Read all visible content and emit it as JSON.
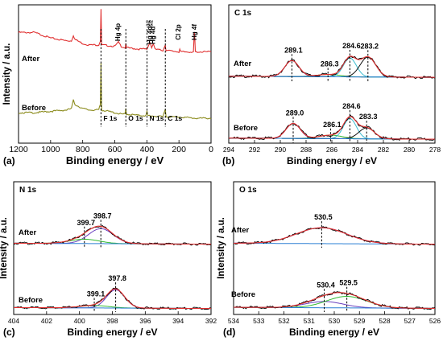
{
  "chart_data": [
    {
      "panel_id": "a",
      "panel_label": "(a)",
      "type": "line",
      "xlabel": "Binding energy / eV",
      "ylabel": "Intensity / a.u.",
      "xlim": [
        1200,
        0
      ],
      "xticks": [
        1200,
        1000,
        800,
        600,
        400,
        200,
        0
      ],
      "peak_labels": [
        {
          "text": "Hg 4p",
          "x": 577
        },
        {
          "text": "Hg 4d",
          "sup": "3/2",
          "x": 380
        },
        {
          "text": "Hg 4d",
          "sup": "5/2",
          "x": 360
        },
        {
          "text": "Cl 2p",
          "x": 200
        },
        {
          "text": "Hg 4f",
          "x": 101
        }
      ],
      "marker_labels": [
        {
          "text": "F 1s",
          "x": 686
        },
        {
          "text": "O 1s",
          "x": 531
        },
        {
          "text": "N 1s",
          "x": 399
        },
        {
          "text": "C 1s",
          "x": 285
        }
      ],
      "series": [
        {
          "name": "After",
          "color": "#e03030",
          "points": [
            [
              1200,
              0.8
            ],
            [
              1100,
              0.8
            ],
            [
              1000,
              0.76
            ],
            [
              900,
              0.74
            ],
            [
              870,
              0.74
            ],
            [
              858,
              0.78
            ],
            [
              848,
              0.75
            ],
            [
              800,
              0.72
            ],
            [
              760,
              0.71
            ],
            [
              700,
              0.71
            ],
            [
              690,
              0.74
            ],
            [
              686,
              0.97
            ],
            [
              682,
              0.71
            ],
            [
              600,
              0.7
            ],
            [
              577,
              0.73
            ],
            [
              560,
              0.7
            ],
            [
              535,
              0.69
            ],
            [
              531,
              0.72
            ],
            [
              527,
              0.69
            ],
            [
              450,
              0.68
            ],
            [
              400,
              0.68
            ],
            [
              380,
              0.73
            ],
            [
              370,
              0.69
            ],
            [
              360,
              0.72
            ],
            [
              350,
              0.68
            ],
            [
              300,
              0.67
            ],
            [
              285,
              0.71
            ],
            [
              280,
              0.67
            ],
            [
              200,
              0.66
            ],
            [
              195,
              0.68
            ],
            [
              190,
              0.66
            ],
            [
              110,
              0.66
            ],
            [
              104,
              0.8
            ],
            [
              101,
              0.75
            ],
            [
              98,
              0.66
            ],
            [
              0,
              0.66
            ]
          ]
        },
        {
          "name": "Before",
          "color": "#8c8c1e",
          "points": [
            [
              1200,
              0.22
            ],
            [
              1100,
              0.22
            ],
            [
              1000,
              0.23
            ],
            [
              900,
              0.24
            ],
            [
              870,
              0.25
            ],
            [
              858,
              0.31
            ],
            [
              848,
              0.28
            ],
            [
              800,
              0.25
            ],
            [
              760,
              0.24
            ],
            [
              700,
              0.24
            ],
            [
              690,
              0.28
            ],
            [
              686,
              0.58
            ],
            [
              682,
              0.24
            ],
            [
              600,
              0.22
            ],
            [
              560,
              0.21
            ],
            [
              535,
              0.21
            ],
            [
              531,
              0.25
            ],
            [
              527,
              0.21
            ],
            [
              450,
              0.2
            ],
            [
              405,
              0.2
            ],
            [
              399,
              0.23
            ],
            [
              395,
              0.2
            ],
            [
              300,
              0.19
            ],
            [
              285,
              0.25
            ],
            [
              280,
              0.19
            ],
            [
              200,
              0.19
            ],
            [
              100,
              0.18
            ],
            [
              0,
              0.18
            ]
          ]
        }
      ]
    },
    {
      "panel_id": "b",
      "panel_label": "(b)",
      "type": "line",
      "title": "C 1s",
      "xlabel": "Binding energy / eV",
      "xlim": [
        294,
        278
      ],
      "xticks": [
        294,
        292,
        290,
        288,
        286,
        284,
        282,
        280,
        278
      ],
      "curve_colors": {
        "raw": "#000000",
        "fit": "#e03030",
        "background": "#2a7fd4",
        "components": [
          "#6a3fbf",
          "#33bb33",
          "#3bbcd0",
          "#111111"
        ]
      },
      "traces": [
        {
          "name": "After",
          "baseline": 0.58,
          "peaks": [
            {
              "label": "289.1",
              "center": 289.1,
              "height": 0.28,
              "width": 0.55
            },
            {
              "label": "286.3",
              "center": 286.3,
              "height": 0.04,
              "width": 0.9
            },
            {
              "label": "284.6",
              "center": 284.6,
              "height": 0.33,
              "width": 0.5
            },
            {
              "label": "283.2",
              "center": 283.2,
              "height": 0.35,
              "width": 0.6
            }
          ]
        },
        {
          "name": "Before",
          "baseline": 0.07,
          "peaks": [
            {
              "label": "289.0",
              "center": 289.0,
              "height": 0.26,
              "width": 0.55
            },
            {
              "label": "286.1",
              "center": 286.1,
              "height": 0.06,
              "width": 0.9
            },
            {
              "label": "284.6",
              "center": 284.6,
              "height": 0.35,
              "width": 0.5
            },
            {
              "label": "283.3",
              "center": 283.3,
              "height": 0.19,
              "width": 0.6
            }
          ]
        }
      ]
    },
    {
      "panel_id": "c",
      "panel_label": "(c)",
      "type": "line",
      "title": "N 1s",
      "xlabel": "Binding energy / eV",
      "ylabel": "Intensity / a.u.",
      "xlim": [
        404,
        392
      ],
      "xticks": [
        404,
        402,
        400,
        398,
        396,
        394,
        392
      ],
      "curve_colors": {
        "raw": "#000000",
        "fit": "#e03030",
        "background": "#2a7fd4",
        "components": [
          "#6a3fbf",
          "#33bb33"
        ]
      },
      "traces": [
        {
          "name": "After",
          "baseline": 0.56,
          "peaks": [
            {
              "label": "398.7",
              "center": 398.7,
              "height": 0.31,
              "width": 0.75
            },
            {
              "label": "399.7",
              "center": 399.7,
              "height": 0.09,
              "width": 0.9
            }
          ]
        },
        {
          "name": "Before",
          "baseline": 0.05,
          "peaks": [
            {
              "label": "397.8",
              "center": 397.8,
              "height": 0.38,
              "width": 0.55
            },
            {
              "label": "399.1",
              "center": 399.1,
              "height": 0.05,
              "width": 0.9
            }
          ]
        }
      ]
    },
    {
      "panel_id": "d",
      "panel_label": "(d)",
      "type": "line",
      "title": "O 1s",
      "xlabel": "Binding energy / eV",
      "ylabel": "Intensity / a.u.",
      "xlim": [
        534,
        526
      ],
      "xticks": [
        534,
        533,
        532,
        531,
        530,
        529,
        528,
        527,
        526
      ],
      "curve_colors": {
        "raw": "#000000",
        "fit": "#e03030",
        "background": "#2a7fd4",
        "components": [
          "#6a3fbf",
          "#33bb33"
        ]
      },
      "traces": [
        {
          "name": "After",
          "baseline": 0.61,
          "peaks": [
            {
              "label": "530.5",
              "center": 530.5,
              "height": 0.33,
              "width": 1.0
            }
          ]
        },
        {
          "name": "Before",
          "baseline": 0.06,
          "peaks": [
            {
              "label": "530.4",
              "center": 530.4,
              "height": 0.12,
              "width": 0.75
            },
            {
              "label": "529.5",
              "center": 529.5,
              "height": 0.22,
              "width": 0.8
            }
          ]
        }
      ]
    }
  ]
}
